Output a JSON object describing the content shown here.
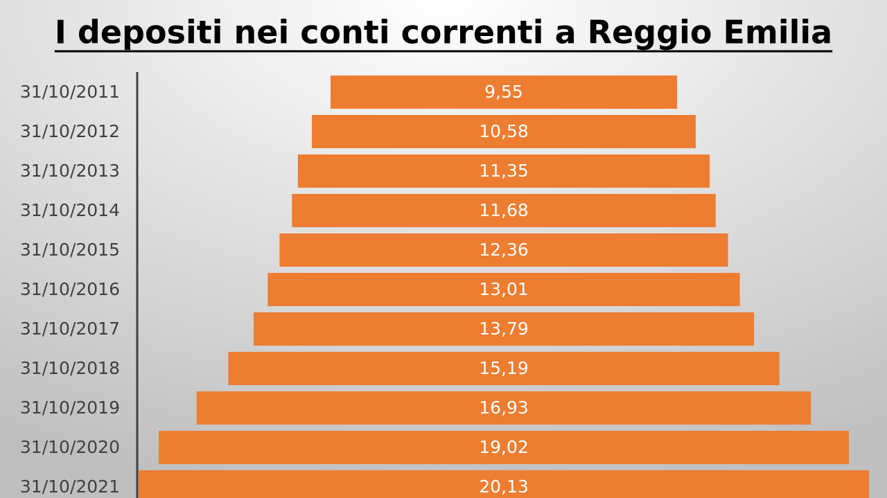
{
  "chart_data": {
    "type": "funnel",
    "title": "I depositi nei conti correnti a Reggio Emilia",
    "categories": [
      "31/10/2011",
      "31/10/2012",
      "31/10/2013",
      "31/10/2014",
      "31/10/2015",
      "31/10/2016",
      "31/10/2017",
      "31/10/2018",
      "31/10/2019",
      "31/10/2020",
      "31/10/2021"
    ],
    "values": [
      9.55,
      10.58,
      11.35,
      11.68,
      12.36,
      13.01,
      13.79,
      15.19,
      16.93,
      19.02,
      20.13
    ],
    "value_labels": [
      "9,55",
      "10,58",
      "11,35",
      "11,68",
      "12,36",
      "13,01",
      "13,79",
      "15,19",
      "16,93",
      "19,02",
      "20,13"
    ],
    "color": "#ed7d31"
  }
}
